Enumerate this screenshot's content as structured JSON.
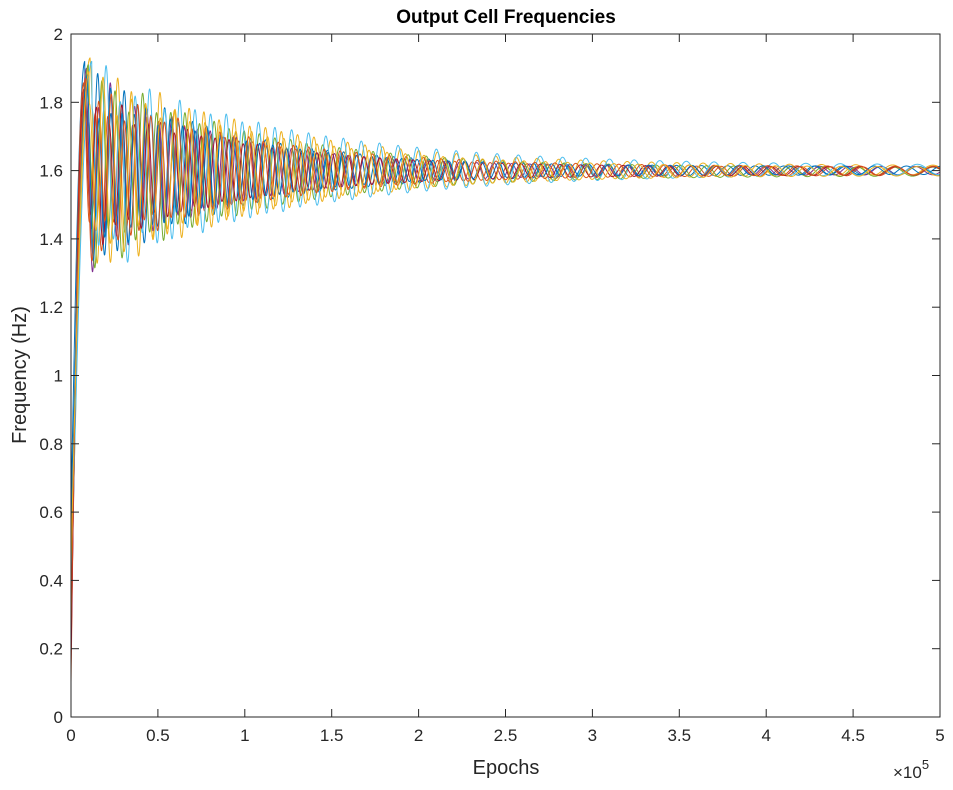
{
  "chart_data": {
    "type": "line",
    "title": "Output Cell Frequencies",
    "xlabel": "Epochs",
    "ylabel": "Frequency (Hz)",
    "x_exponent": {
      "prefix": "×10",
      "power": "5"
    },
    "xlim": [
      0,
      5
    ],
    "ylim": [
      0,
      2
    ],
    "xticks": [
      "0",
      "0.5",
      "1",
      "1.5",
      "2",
      "2.5",
      "3",
      "3.5",
      "4",
      "4.5",
      "5"
    ],
    "yticks": [
      "0",
      "0.2",
      "0.4",
      "0.6",
      "0.8",
      "1",
      "1.2",
      "1.4",
      "1.6",
      "1.8",
      "2"
    ],
    "grid": false,
    "legend": "none",
    "series_model": "damped oscillation rising from ~0.1 to a peak near 1.9 around x=0.08, settling at ~1.6 Hz",
    "series": [
      {
        "color": "#0072BD",
        "start": 0.6,
        "peak_x": 0.08,
        "peak_y": 1.92,
        "settle": 1.6,
        "amp": 0.3,
        "decay": 1.35,
        "freq": 13.5,
        "phase": 0.0
      },
      {
        "color": "#D95319",
        "start": 0.1,
        "peak_x": 0.07,
        "peak_y": 1.85,
        "settle": 1.598,
        "amp": 0.27,
        "decay": 1.25,
        "freq": 14.3,
        "phase": 1.2
      },
      {
        "color": "#EDB120",
        "start": 0.3,
        "peak_x": 0.11,
        "peak_y": 1.93,
        "settle": 1.602,
        "amp": 0.32,
        "decay": 1.05,
        "freq": 12.8,
        "phase": 2.3
      },
      {
        "color": "#7E2F8E",
        "start": 0.2,
        "peak_x": 0.09,
        "peak_y": 1.9,
        "settle": 1.6,
        "amp": 0.26,
        "decay": 1.45,
        "freq": 14.8,
        "phase": 3.4
      },
      {
        "color": "#77AC30",
        "start": 0.4,
        "peak_x": 0.1,
        "peak_y": 1.91,
        "settle": 1.597,
        "amp": 0.29,
        "decay": 1.15,
        "freq": 13.1,
        "phase": 4.5
      },
      {
        "color": "#4DBEEE",
        "start": 0.35,
        "peak_x": 0.12,
        "peak_y": 1.92,
        "settle": 1.603,
        "amp": 0.31,
        "decay": 0.95,
        "freq": 12.3,
        "phase": 5.4
      },
      {
        "color": "#A2142F",
        "start": 0.15,
        "peak_x": 0.075,
        "peak_y": 1.84,
        "settle": 1.599,
        "amp": 0.25,
        "decay": 1.3,
        "freq": 14.0,
        "phase": 0.7
      },
      {
        "color": "#0072BD",
        "start": 0.5,
        "peak_x": 0.095,
        "peak_y": 1.88,
        "settle": 1.601,
        "amp": 0.28,
        "decay": 1.4,
        "freq": 15.2,
        "phase": 2.9
      },
      {
        "color": "#D95319",
        "start": 0.25,
        "peak_x": 0.085,
        "peak_y": 1.87,
        "settle": 1.6,
        "amp": 0.27,
        "decay": 1.2,
        "freq": 13.7,
        "phase": 4.0
      },
      {
        "color": "#EDB120",
        "start": 0.45,
        "peak_x": 0.105,
        "peak_y": 1.89,
        "settle": 1.598,
        "amp": 0.3,
        "decay": 1.1,
        "freq": 12.6,
        "phase": 5.9
      }
    ]
  }
}
